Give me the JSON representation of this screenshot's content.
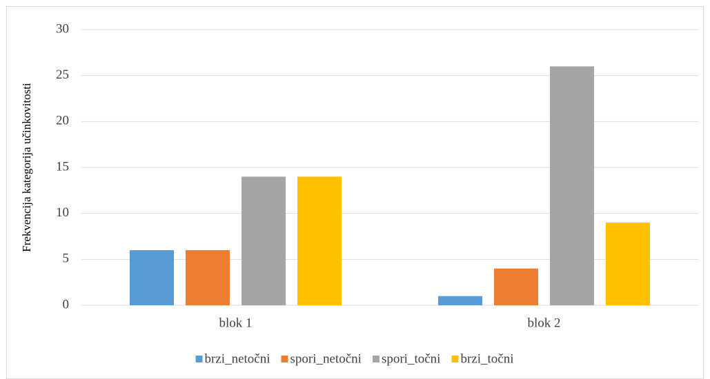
{
  "chart_data": {
    "type": "bar",
    "y_label": "Frekvencija kategorija učinkovitosti",
    "categories": [
      "blok 1",
      "blok 2"
    ],
    "series": [
      {
        "name": "brzi_netočni",
        "color": "#5b9bd5",
        "values": [
          6,
          1
        ]
      },
      {
        "name": "spori_netočni",
        "color": "#ed7d31",
        "values": [
          6,
          4
        ]
      },
      {
        "name": "spori_točni",
        "color": "#a5a5a5",
        "values": [
          14,
          26
        ]
      },
      {
        "name": "brzi_točni",
        "color": "#ffc000",
        "values": [
          14,
          9
        ]
      }
    ],
    "ylim": [
      0,
      30
    ],
    "yticks": [
      0,
      5,
      10,
      15,
      20,
      25,
      30
    ],
    "grid": true,
    "legend": "bottom"
  }
}
